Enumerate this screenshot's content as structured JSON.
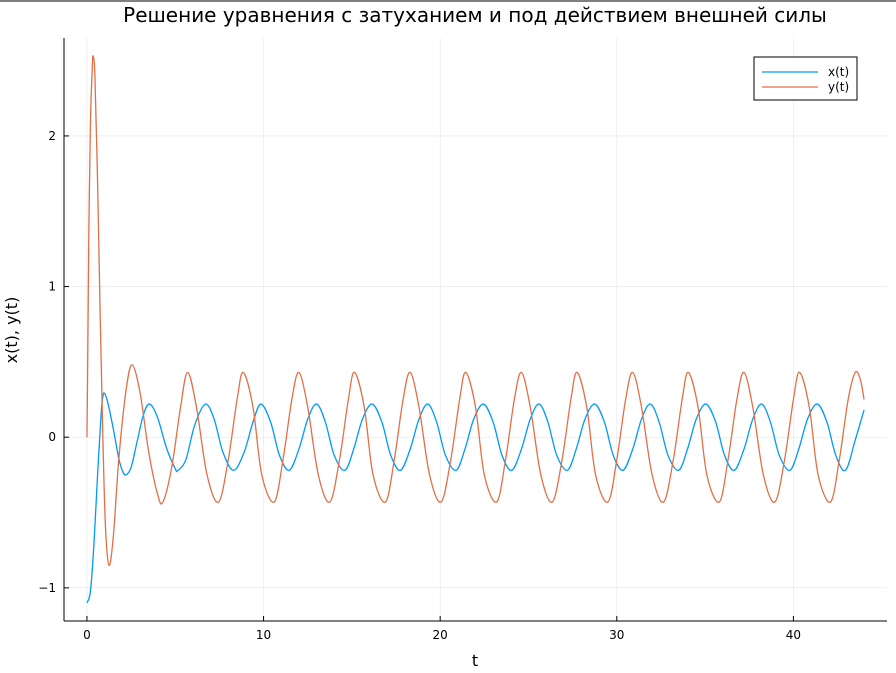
{
  "chart_data": {
    "type": "line",
    "title": "Решение уравнения с затуханием и под действием внешней силы",
    "xlabel": "t",
    "ylabel": "x(t), y(t)",
    "xlim": [
      -1.3,
      45.3
    ],
    "ylim": [
      -1.22,
      2.65
    ],
    "xticks": [
      0,
      10,
      20,
      30,
      40
    ],
    "xtick_labels": [
      "0",
      "10",
      "20",
      "30",
      "40"
    ],
    "yticks": [
      -1,
      0,
      1,
      2
    ],
    "ytick_labels": [
      "−1",
      "0",
      "1",
      "2"
    ],
    "grid": true,
    "legend_position": "top-right",
    "series": [
      {
        "name": "x(t)",
        "color": "#009af9",
        "points": [
          [
            0.0,
            -1.1
          ],
          [
            0.2,
            -1.02
          ],
          [
            0.4,
            -0.7
          ],
          [
            0.6,
            -0.25
          ],
          [
            0.8,
            0.15
          ],
          [
            0.9,
            0.27
          ],
          [
            1.0,
            0.29
          ],
          [
            1.2,
            0.22
          ],
          [
            1.5,
            0.05
          ],
          [
            1.8,
            -0.14
          ],
          [
            2.0,
            -0.22
          ],
          [
            2.2,
            -0.25
          ],
          [
            2.5,
            -0.2
          ],
          [
            2.8,
            -0.05
          ],
          [
            3.2,
            0.15
          ],
          [
            3.55,
            0.22
          ],
          [
            4.0,
            0.13
          ],
          [
            4.5,
            -0.07
          ],
          [
            5.0,
            -0.21
          ],
          [
            5.15,
            -0.22
          ],
          [
            5.6,
            -0.15
          ],
          [
            6.1,
            0.08
          ],
          [
            6.7,
            0.22
          ],
          [
            7.2,
            0.12
          ],
          [
            7.7,
            -0.1
          ],
          [
            8.3,
            -0.22
          ],
          [
            8.9,
            -0.1
          ],
          [
            9.4,
            0.1
          ],
          [
            9.85,
            0.22
          ],
          [
            10.4,
            0.1
          ],
          [
            10.9,
            -0.12
          ],
          [
            11.45,
            -0.22
          ],
          [
            12.0,
            -0.08
          ],
          [
            12.5,
            0.12
          ],
          [
            13.0,
            0.22
          ],
          [
            13.5,
            0.1
          ],
          [
            14.0,
            -0.12
          ],
          [
            14.6,
            -0.22
          ],
          [
            15.1,
            -0.08
          ],
          [
            15.6,
            0.12
          ],
          [
            16.15,
            0.22
          ],
          [
            16.7,
            0.1
          ],
          [
            17.2,
            -0.12
          ],
          [
            17.75,
            -0.22
          ],
          [
            18.3,
            -0.08
          ],
          [
            18.8,
            0.12
          ],
          [
            19.3,
            0.22
          ],
          [
            19.8,
            0.1
          ],
          [
            20.3,
            -0.12
          ],
          [
            20.9,
            -0.22
          ],
          [
            21.4,
            -0.08
          ],
          [
            21.9,
            0.12
          ],
          [
            22.45,
            0.22
          ],
          [
            23.0,
            0.1
          ],
          [
            23.5,
            -0.12
          ],
          [
            24.05,
            -0.22
          ],
          [
            24.6,
            -0.08
          ],
          [
            25.1,
            0.12
          ],
          [
            25.6,
            0.22
          ],
          [
            26.1,
            0.1
          ],
          [
            26.6,
            -0.12
          ],
          [
            27.2,
            -0.22
          ],
          [
            27.7,
            -0.08
          ],
          [
            28.2,
            0.12
          ],
          [
            28.75,
            0.22
          ],
          [
            29.3,
            0.1
          ],
          [
            29.8,
            -0.12
          ],
          [
            30.35,
            -0.22
          ],
          [
            30.9,
            -0.08
          ],
          [
            31.4,
            0.12
          ],
          [
            31.9,
            0.22
          ],
          [
            32.4,
            0.1
          ],
          [
            32.9,
            -0.12
          ],
          [
            33.5,
            -0.22
          ],
          [
            34.0,
            -0.08
          ],
          [
            34.5,
            0.12
          ],
          [
            35.05,
            0.22
          ],
          [
            35.6,
            0.1
          ],
          [
            36.1,
            -0.12
          ],
          [
            36.65,
            -0.22
          ],
          [
            37.2,
            -0.08
          ],
          [
            37.7,
            0.12
          ],
          [
            38.2,
            0.22
          ],
          [
            38.7,
            0.1
          ],
          [
            39.2,
            -0.12
          ],
          [
            39.8,
            -0.22
          ],
          [
            40.3,
            -0.08
          ],
          [
            40.8,
            0.12
          ],
          [
            41.35,
            0.22
          ],
          [
            41.9,
            0.1
          ],
          [
            42.4,
            -0.12
          ],
          [
            42.95,
            -0.22
          ],
          [
            43.5,
            -0.02
          ],
          [
            44.0,
            0.18
          ]
        ]
      },
      {
        "name": "y(t)",
        "color": "#e26f46",
        "points": [
          [
            0.0,
            0.0
          ],
          [
            0.05,
            0.6
          ],
          [
            0.1,
            1.3
          ],
          [
            0.2,
            2.1
          ],
          [
            0.3,
            2.45
          ],
          [
            0.35,
            2.53
          ],
          [
            0.45,
            2.4
          ],
          [
            0.6,
            1.7
          ],
          [
            0.75,
            0.8
          ],
          [
            0.9,
            0.0
          ],
          [
            1.05,
            -0.6
          ],
          [
            1.25,
            -0.85
          ],
          [
            1.5,
            -0.65
          ],
          [
            1.8,
            -0.15
          ],
          [
            2.2,
            0.3
          ],
          [
            2.55,
            0.48
          ],
          [
            3.0,
            0.3
          ],
          [
            3.5,
            -0.1
          ],
          [
            4.0,
            -0.38
          ],
          [
            4.3,
            -0.43
          ],
          [
            4.8,
            -0.2
          ],
          [
            5.3,
            0.2
          ],
          [
            5.7,
            0.43
          ],
          [
            6.2,
            0.2
          ],
          [
            6.8,
            -0.25
          ],
          [
            7.45,
            -0.43
          ],
          [
            8.0,
            -0.15
          ],
          [
            8.5,
            0.25
          ],
          [
            8.85,
            0.43
          ],
          [
            9.4,
            0.2
          ],
          [
            9.9,
            -0.25
          ],
          [
            10.6,
            -0.43
          ],
          [
            11.1,
            -0.15
          ],
          [
            11.6,
            0.25
          ],
          [
            12.0,
            0.43
          ],
          [
            12.5,
            0.2
          ],
          [
            13.1,
            -0.25
          ],
          [
            13.75,
            -0.43
          ],
          [
            14.3,
            -0.15
          ],
          [
            14.8,
            0.25
          ],
          [
            15.15,
            0.43
          ],
          [
            15.7,
            0.2
          ],
          [
            16.2,
            -0.25
          ],
          [
            16.9,
            -0.43
          ],
          [
            17.4,
            -0.15
          ],
          [
            17.9,
            0.25
          ],
          [
            18.3,
            0.43
          ],
          [
            18.8,
            0.2
          ],
          [
            19.4,
            -0.25
          ],
          [
            20.05,
            -0.43
          ],
          [
            20.6,
            -0.15
          ],
          [
            21.1,
            0.25
          ],
          [
            21.45,
            0.43
          ],
          [
            22.0,
            0.2
          ],
          [
            22.5,
            -0.25
          ],
          [
            23.2,
            -0.43
          ],
          [
            23.7,
            -0.15
          ],
          [
            24.2,
            0.25
          ],
          [
            24.6,
            0.43
          ],
          [
            25.1,
            0.2
          ],
          [
            25.7,
            -0.25
          ],
          [
            26.35,
            -0.43
          ],
          [
            26.9,
            -0.15
          ],
          [
            27.4,
            0.25
          ],
          [
            27.75,
            0.43
          ],
          [
            28.3,
            0.2
          ],
          [
            28.8,
            -0.25
          ],
          [
            29.5,
            -0.43
          ],
          [
            30.0,
            -0.15
          ],
          [
            30.5,
            0.25
          ],
          [
            30.9,
            0.43
          ],
          [
            31.4,
            0.2
          ],
          [
            32.0,
            -0.25
          ],
          [
            32.65,
            -0.43
          ],
          [
            33.2,
            -0.15
          ],
          [
            33.7,
            0.25
          ],
          [
            34.05,
            0.43
          ],
          [
            34.6,
            0.2
          ],
          [
            35.1,
            -0.25
          ],
          [
            35.8,
            -0.43
          ],
          [
            36.3,
            -0.15
          ],
          [
            36.8,
            0.25
          ],
          [
            37.2,
            0.43
          ],
          [
            37.7,
            0.2
          ],
          [
            38.3,
            -0.25
          ],
          [
            38.95,
            -0.43
          ],
          [
            39.5,
            -0.15
          ],
          [
            40.0,
            0.25
          ],
          [
            40.35,
            0.43
          ],
          [
            40.9,
            0.2
          ],
          [
            41.4,
            -0.25
          ],
          [
            42.1,
            -0.43
          ],
          [
            42.6,
            -0.15
          ],
          [
            43.1,
            0.25
          ],
          [
            43.5,
            0.43
          ],
          [
            43.8,
            0.38
          ],
          [
            44.0,
            0.25
          ]
        ]
      }
    ]
  }
}
